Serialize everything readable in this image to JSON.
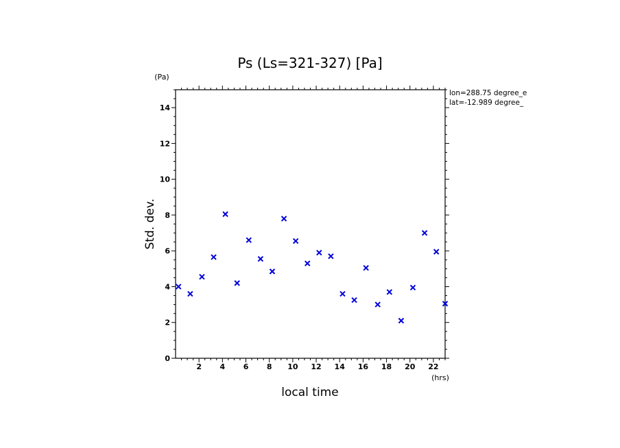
{
  "chart_data": {
    "type": "scatter",
    "title": "Ps (Ls=321-327) [Pa]",
    "xlabel": "local time",
    "ylabel": "Std. dev.",
    "xunit": "(hrs)",
    "yunit": "(Pa)",
    "annotations": [
      "lon=288.75 degree_e",
      "lat=-12.989 degree_"
    ],
    "xlim": [
      0,
      23
    ],
    "ylim": [
      0,
      15
    ],
    "xticks": [
      2,
      4,
      6,
      8,
      10,
      12,
      14,
      16,
      18,
      20,
      22
    ],
    "yticks": [
      0,
      2,
      4,
      6,
      8,
      10,
      12,
      14
    ],
    "marker": "x",
    "marker_color": "#0000d8",
    "grid": false,
    "series": [
      {
        "x": [
          0.25,
          1.25,
          2.25,
          3.25,
          4.25,
          5.25,
          6.25,
          7.25,
          8.25,
          9.25,
          10.25,
          11.25,
          12.25,
          13.25,
          14.25,
          15.25,
          16.25,
          17.25,
          18.25,
          19.25,
          20.25,
          21.25,
          22.25,
          23.0
        ],
        "y": [
          4.0,
          3.6,
          4.55,
          5.65,
          8.05,
          4.2,
          6.6,
          5.55,
          4.85,
          7.8,
          6.55,
          5.3,
          5.9,
          5.7,
          3.6,
          3.25,
          5.05,
          3.0,
          3.7,
          2.1,
          3.95,
          7.0,
          5.95,
          3.05
        ]
      }
    ]
  }
}
